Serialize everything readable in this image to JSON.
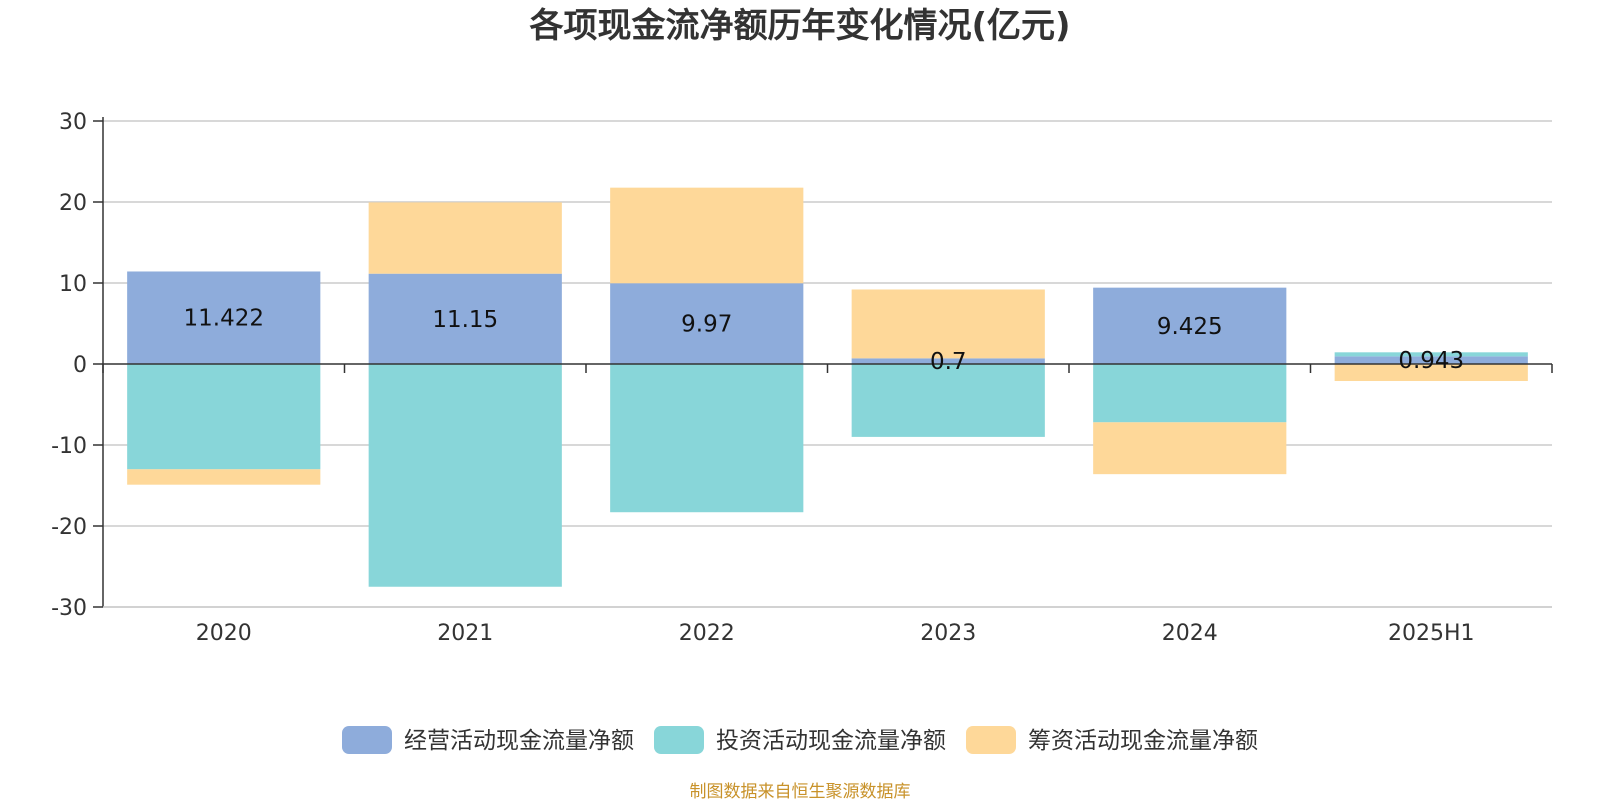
{
  "chart_data": {
    "type": "bar",
    "stacked": true,
    "title": "各项现金流净额历年变化情况(亿元)",
    "categories": [
      "2020",
      "2021",
      "2022",
      "2023",
      "2024",
      "2025H1"
    ],
    "ylim": [
      -30,
      30
    ],
    "yticks": [
      30,
      20,
      10,
      0,
      -10,
      -20,
      -30
    ],
    "grid": true,
    "legend_position": "bottom",
    "series": [
      {
        "name": "经营活动现金流量净额",
        "color": "#8eacdb",
        "values": [
          11.422,
          11.15,
          9.97,
          0.7,
          9.425,
          0.943
        ],
        "labels": [
          "11.422",
          "11.15",
          "9.97",
          "0.7",
          "9.425",
          "0.943"
        ]
      },
      {
        "name": "投资活动现金流量净额",
        "color": "#88d6d9",
        "values": [
          -13.0,
          -27.5,
          -18.3,
          -9.0,
          -7.2,
          0.5
        ]
      },
      {
        "name": "筹资活动现金流量净额",
        "color": "#fed899",
        "values": [
          -1.9,
          8.8,
          11.8,
          8.5,
          -6.4,
          -2.1
        ]
      }
    ],
    "source_note": "制图数据来自恒生聚源数据库"
  }
}
